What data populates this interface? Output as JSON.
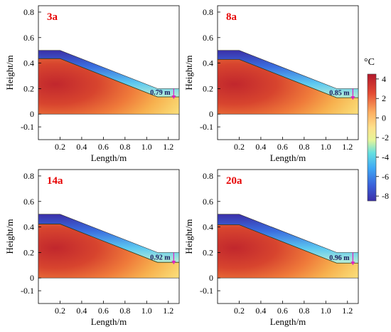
{
  "chart_data": {
    "type": "heatmap",
    "colorbar": {
      "unit": "°C",
      "ticks": [
        4,
        2,
        0,
        -2,
        -4,
        -6,
        -8
      ],
      "range": [
        -8.5,
        4.5
      ],
      "colormap": "jet"
    },
    "panels": [
      {
        "label": "3a",
        "freeze_depth": "0.79 m",
        "xlabel": "Length/m",
        "ylabel": "Height/m",
        "xticks": [
          "0.2",
          "0.4",
          "0.6",
          "0.8",
          "1.0",
          "1.2"
        ],
        "yticks": [
          "0.8",
          "0.6",
          "0.4",
          "0.2",
          "0",
          "-0.1"
        ],
        "xlim": [
          0,
          1.3
        ],
        "ylim": [
          -0.2,
          0.85
        ]
      },
      {
        "label": "8a",
        "freeze_depth": "0.85 m",
        "xlabel": "Length/m",
        "ylabel": "Height/m",
        "xticks": [
          "0.2",
          "0.4",
          "0.6",
          "0.8",
          "1.0",
          "1.2"
        ],
        "yticks": [
          "0.8",
          "0.6",
          "0.4",
          "0.2",
          "0",
          "-0.1"
        ],
        "xlim": [
          0,
          1.3
        ],
        "ylim": [
          -0.2,
          0.85
        ]
      },
      {
        "label": "14a",
        "freeze_depth": "0.92 m",
        "xlabel": "Length/m",
        "ylabel": "Height/m",
        "xticks": [
          "0.2",
          "0.4",
          "0.6",
          "0.8",
          "1.0",
          "1.2"
        ],
        "yticks": [
          "0.8",
          "0.6",
          "0.4",
          "0.2",
          "0",
          "-0.1"
        ],
        "xlim": [
          0,
          1.3
        ],
        "ylim": [
          -0.2,
          0.85
        ]
      },
      {
        "label": "20a",
        "freeze_depth": "0.96 m",
        "xlabel": "Length/m",
        "ylabel": "Height/m",
        "xticks": [
          "0.2",
          "0.4",
          "0.6",
          "0.8",
          "1.0",
          "1.2"
        ],
        "yticks": [
          "0.8",
          "0.6",
          "0.4",
          "0.2",
          "0",
          "-0.1"
        ],
        "xlim": [
          0,
          1.3
        ],
        "ylim": [
          -0.2,
          0.85
        ]
      }
    ],
    "profile": {
      "top_surface": [
        [
          0,
          0.5
        ],
        [
          0.2,
          0.5
        ],
        [
          1.1,
          0.2
        ],
        [
          1.3,
          0.2
        ]
      ],
      "bottom": 0
    }
  }
}
